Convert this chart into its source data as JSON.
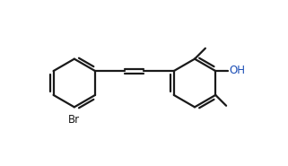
{
  "bg_color": "#ffffff",
  "line_color": "#1a1a1a",
  "line_width": 1.6,
  "font_size_label": 8.5,
  "OH_color": "#1a4db5",
  "Br_color": "#1a1a1a",
  "figw": 3.21,
  "figh": 1.85,
  "dpi": 100,
  "xlim": [
    0,
    10
  ],
  "ylim": [
    0,
    6.5
  ]
}
